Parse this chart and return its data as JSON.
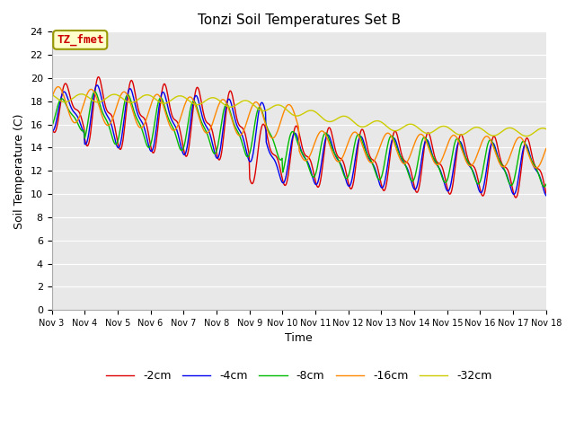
{
  "title": "Tonzi Soil Temperatures Set B",
  "xlabel": "Time",
  "ylabel": "Soil Temperature (C)",
  "annotation": "TZ_fmet",
  "xlim": [
    0,
    15
  ],
  "ylim": [
    0,
    24
  ],
  "yticks": [
    0,
    2,
    4,
    6,
    8,
    10,
    12,
    14,
    16,
    18,
    20,
    22,
    24
  ],
  "xtick_labels": [
    "Nov 3",
    "Nov 4",
    "Nov 5",
    "Nov 6",
    "Nov 7",
    "Nov 8",
    "Nov 9",
    "Nov 10",
    "Nov 11",
    "Nov 12",
    "Nov 13",
    "Nov 14",
    "Nov 15",
    "Nov 16",
    "Nov 17",
    "Nov 18"
  ],
  "series_colors": [
    "#dd0000",
    "#0000ee",
    "#00bb00",
    "#ff8800",
    "#cccc00"
  ],
  "series_labels": [
    "-2cm",
    "-4cm",
    "-8cm",
    "-16cm",
    "-32cm"
  ],
  "background_color": "#e8e8e8",
  "figure_color": "#ffffff",
  "title_fontsize": 11,
  "axis_label_fontsize": 9,
  "tick_fontsize": 8,
  "legend_fontsize": 9,
  "annotation_fontsize": 9,
  "grid_color": "#ffffff",
  "n_points": 720
}
